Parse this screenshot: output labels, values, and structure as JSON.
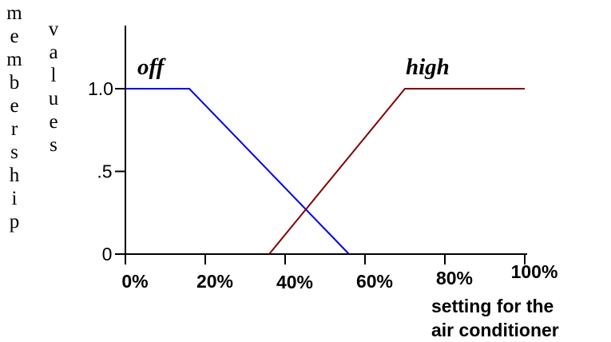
{
  "chart_data": {
    "type": "line",
    "title": "",
    "ylabel_left": "membership",
    "ylabel_right": "values",
    "xlabel_lines": [
      "setting for the",
      "air conditioner"
    ],
    "x_ticks": [
      {
        "value": 0,
        "label": "0%"
      },
      {
        "value": 20,
        "label": "20%"
      },
      {
        "value": 40,
        "label": "40%"
      },
      {
        "value": 60,
        "label": "60%"
      },
      {
        "value": 80,
        "label": "80%"
      },
      {
        "value": 100,
        "label": "100%"
      }
    ],
    "y_ticks": [
      {
        "value": 0,
        "label": "0"
      },
      {
        "value": 0.5,
        "label": ".5"
      },
      {
        "value": 1,
        "label": "1.0"
      }
    ],
    "xlim": [
      0,
      100
    ],
    "ylim": [
      0,
      1
    ],
    "grid": false,
    "legend": "none",
    "series": [
      {
        "name": "off",
        "color": "#0000ee",
        "x": [
          0,
          16,
          56
        ],
        "y": [
          1,
          1,
          0
        ]
      },
      {
        "name": "high",
        "color": "#800000",
        "x": [
          36,
          70,
          100
        ],
        "y": [
          0,
          1,
          1
        ]
      }
    ]
  }
}
